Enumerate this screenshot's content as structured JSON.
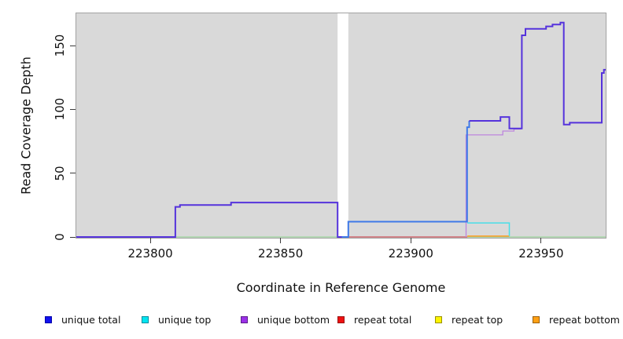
{
  "figure": {
    "plot_background": "#d9d9d9",
    "plot_border": "#a2a2a2",
    "page_background": "#ffffff",
    "tick_color": "#3a3a3a"
  },
  "chart_data": {
    "type": "line",
    "step": true,
    "title": "",
    "xlabel": "Coordinate in Reference Genome",
    "ylabel": "Read Coverage Depth",
    "x_ticks": [
      223800,
      223850,
      223900,
      223950
    ],
    "y_ticks": [
      0,
      50,
      100,
      150
    ],
    "xlim": [
      223771.6,
      223974.8
    ],
    "ylim": [
      0,
      175.2
    ],
    "grid": false,
    "legend_position": "bottom",
    "gap_region": {
      "x0": 223871.9,
      "x1": 223876.0
    },
    "series": [
      {
        "name": "baseline",
        "label": "baseline",
        "color": "#9fd69f",
        "width": 1.2,
        "points": [
          [
            223771.6,
            0
          ],
          [
            223974.8,
            0
          ]
        ]
      },
      {
        "name": "repeat-total",
        "label": "repeat total",
        "color": "#d44f62",
        "width": 1.2,
        "points": [
          [
            223876.0,
            0
          ],
          [
            223921.7,
            0
          ]
        ]
      },
      {
        "name": "repeat-bottom",
        "label": "repeat bottom",
        "color": "#ff9a1e",
        "width": 1.5,
        "points": [
          [
            223921.7,
            0.7
          ],
          [
            223937.8,
            0.7
          ]
        ]
      },
      {
        "name": "unique-top",
        "label": "unique top",
        "color": "#48dfe8",
        "width": 1.5,
        "points": [
          [
            223921.7,
            11
          ],
          [
            223937.8,
            11
          ],
          [
            223937.8,
            0.7
          ]
        ]
      },
      {
        "name": "unique-bottom",
        "label": "unique bottom",
        "color": "#bd85de",
        "width": 1.3,
        "points": [
          [
            223921.2,
            0
          ],
          [
            223921.2,
            80
          ],
          [
            223935.3,
            80
          ],
          [
            223935.3,
            83
          ],
          [
            223939.6,
            83
          ],
          [
            223939.6,
            84.5
          ],
          [
            223942.3,
            84.5
          ]
        ]
      },
      {
        "name": "unique-total-gap",
        "label": "unique total",
        "color": "#3e79e8",
        "width": 2,
        "points": [
          [
            223873.5,
            0
          ],
          [
            223876.0,
            0
          ],
          [
            223876.0,
            12
          ],
          [
            223921.6,
            12
          ],
          [
            223921.6,
            86
          ],
          [
            223922.4,
            86
          ],
          [
            223922.4,
            91
          ]
        ]
      },
      {
        "name": "unique-total-left",
        "label": "unique total",
        "color": "#5533dc",
        "width": 2,
        "points": [
          [
            223771.6,
            0
          ],
          [
            223809.6,
            0
          ],
          [
            223809.6,
            23.6
          ],
          [
            223811.4,
            23.6
          ],
          [
            223811.4,
            25
          ],
          [
            223831.0,
            25
          ],
          [
            223831.0,
            27
          ],
          [
            223871.9,
            27
          ],
          [
            223871.9,
            0
          ],
          [
            223873.5,
            0
          ]
        ]
      },
      {
        "name": "unique-total-right",
        "label": "unique total",
        "color": "#5533dc",
        "width": 2,
        "points": [
          [
            223922.4,
            91
          ],
          [
            223934.4,
            91
          ],
          [
            223934.4,
            94
          ],
          [
            223937.8,
            94
          ],
          [
            223937.8,
            85
          ],
          [
            223942.6,
            85
          ],
          [
            223942.6,
            158
          ],
          [
            223944.0,
            158
          ],
          [
            223944.0,
            163
          ],
          [
            223951.9,
            163
          ],
          [
            223951.9,
            165
          ],
          [
            223954.4,
            165
          ],
          [
            223954.4,
            166.5
          ],
          [
            223957.4,
            166.5
          ],
          [
            223957.4,
            168
          ],
          [
            223958.7,
            168
          ],
          [
            223958.7,
            88
          ],
          [
            223961.0,
            88
          ],
          [
            223961.0,
            89.5
          ],
          [
            223973.3,
            89.5
          ],
          [
            223973.3,
            128.5
          ],
          [
            223974.1,
            128.5
          ],
          [
            223974.1,
            131
          ],
          [
            223974.8,
            131
          ]
        ]
      }
    ]
  },
  "legend": [
    {
      "label": "unique total",
      "color": "#1111ee",
      "border": "#0000aa"
    },
    {
      "label": "unique top",
      "color": "#00e5f0",
      "border": "#008b9e"
    },
    {
      "label": "unique bottom",
      "color": "#9b30e8",
      "border": "#5c1d8a"
    },
    {
      "label": "repeat total",
      "color": "#ee1111",
      "border": "#991111"
    },
    {
      "label": "repeat top",
      "color": "#fdf400",
      "border": "#999100"
    },
    {
      "label": "repeat bottom",
      "color": "#ffa014",
      "border": "#995f0c"
    }
  ]
}
